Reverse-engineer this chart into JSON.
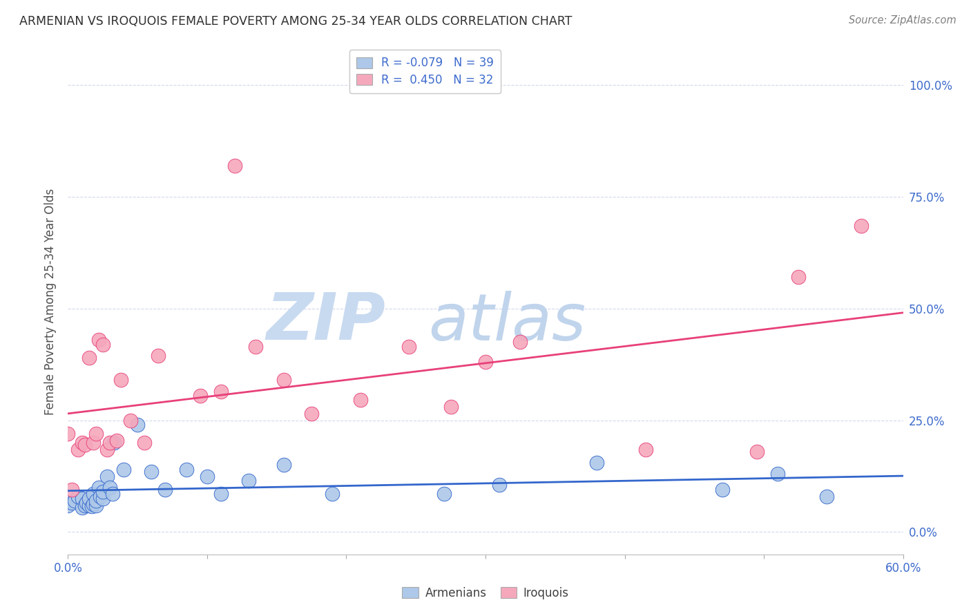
{
  "title": "ARMENIAN VS IROQUOIS FEMALE POVERTY AMONG 25-34 YEAR OLDS CORRELATION CHART",
  "source": "Source: ZipAtlas.com",
  "ylabel": "Female Poverty Among 25-34 Year Olds",
  "ytick_vals": [
    0.0,
    0.25,
    0.5,
    0.75,
    1.0
  ],
  "ytick_labels": [
    "0.0%",
    "25.0%",
    "50.0%",
    "75.0%",
    "100.0%"
  ],
  "xmin": 0.0,
  "xmax": 0.6,
  "ymin": -0.05,
  "ymax": 1.08,
  "armenian_color": "#adc8e8",
  "iroquois_color": "#f5a8bc",
  "line_armenian_color": "#3366cc",
  "line_iroquois_color": "#e8407a",
  "watermark_zip_color": "#c5d8ee",
  "watermark_atlas_color": "#c5d8ee",
  "legend_R1": "R = -0.079",
  "legend_N1": "N = 39",
  "legend_R2": "R =  0.450",
  "legend_N2": "N = 32",
  "armenian_x": [
    0.0,
    0.003,
    0.005,
    0.007,
    0.01,
    0.01,
    0.012,
    0.013,
    0.015,
    0.015,
    0.017,
    0.018,
    0.018,
    0.02,
    0.02,
    0.022,
    0.023,
    0.025,
    0.025,
    0.028,
    0.03,
    0.032,
    0.033,
    0.04,
    0.05,
    0.06,
    0.07,
    0.085,
    0.1,
    0.11,
    0.13,
    0.155,
    0.19,
    0.27,
    0.31,
    0.38,
    0.47,
    0.51,
    0.545
  ],
  "armenian_y": [
    0.06,
    0.065,
    0.07,
    0.08,
    0.055,
    0.075,
    0.06,
    0.065,
    0.06,
    0.075,
    0.058,
    0.063,
    0.085,
    0.06,
    0.07,
    0.1,
    0.08,
    0.075,
    0.09,
    0.125,
    0.1,
    0.085,
    0.2,
    0.14,
    0.24,
    0.135,
    0.095,
    0.14,
    0.125,
    0.085,
    0.115,
    0.15,
    0.085,
    0.085,
    0.105,
    0.155,
    0.095,
    0.13,
    0.08
  ],
  "iroquois_x": [
    0.0,
    0.003,
    0.007,
    0.01,
    0.012,
    0.015,
    0.018,
    0.02,
    0.022,
    0.025,
    0.028,
    0.03,
    0.035,
    0.038,
    0.045,
    0.055,
    0.065,
    0.095,
    0.11,
    0.12,
    0.135,
    0.155,
    0.175,
    0.21,
    0.245,
    0.275,
    0.3,
    0.325,
    0.415,
    0.495,
    0.525,
    0.57
  ],
  "iroquois_y": [
    0.22,
    0.095,
    0.185,
    0.2,
    0.195,
    0.39,
    0.2,
    0.22,
    0.43,
    0.42,
    0.185,
    0.2,
    0.205,
    0.34,
    0.25,
    0.2,
    0.395,
    0.305,
    0.315,
    0.82,
    0.415,
    0.34,
    0.265,
    0.295,
    0.415,
    0.28,
    0.38,
    0.425,
    0.185,
    0.18,
    0.57,
    0.685
  ],
  "background_color": "#ffffff",
  "grid_color": "#d0d8ec",
  "title_color": "#303030",
  "axis_label_color": "#3d6bcc",
  "legend_label_color": "#3d6bcc",
  "ylabel_color": "#505050"
}
